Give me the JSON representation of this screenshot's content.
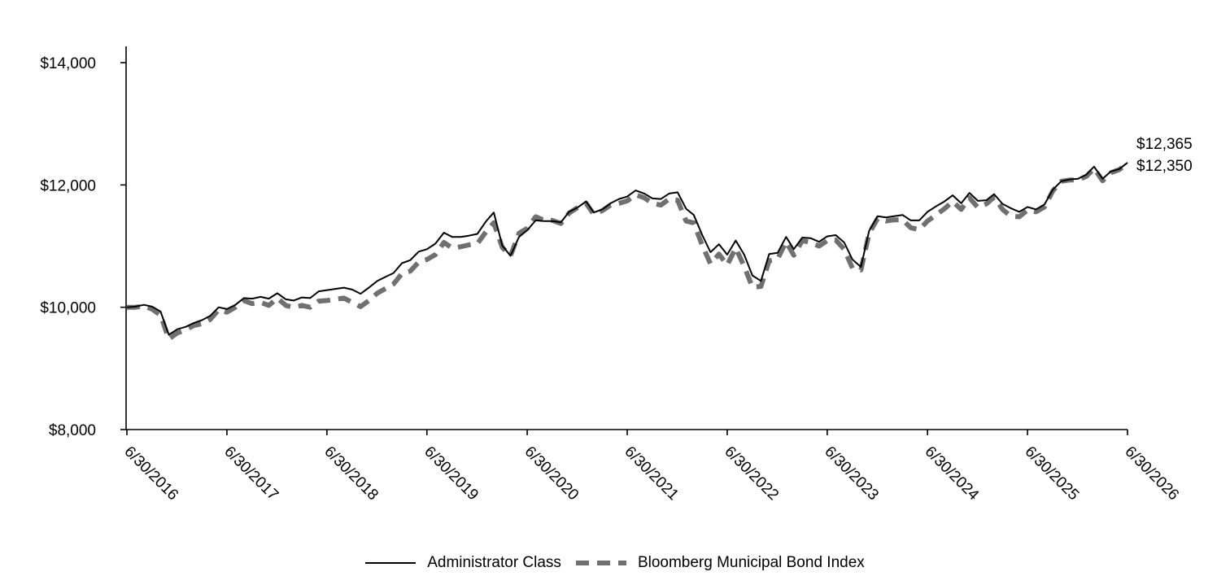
{
  "chart_data": {
    "type": "line",
    "title": "",
    "xlabel": "",
    "ylabel": "",
    "ylim": [
      8000,
      14000
    ],
    "y_ticks": [
      8000,
      10000,
      12000,
      14000
    ],
    "y_tick_labels": [
      "$8,000",
      "$10,000",
      "$12,000",
      "$14,000"
    ],
    "x_ticks": [
      "6/30/2016",
      "6/30/2017",
      "6/30/2018",
      "6/30/2019",
      "6/30/2020",
      "6/30/2021",
      "6/30/2022",
      "6/30/2023",
      "6/30/2024",
      "6/30/2025",
      "6/30/2026"
    ],
    "xlim": [
      "6/30/2016",
      "6/30/2026"
    ],
    "grid": false,
    "legend_placement": "bottom-center",
    "end_labels": [
      "$12,365",
      "$12,350"
    ],
    "series": [
      {
        "name": "Administrator Class",
        "color": "#000000",
        "style": "solid",
        "points": [
          [
            "6/30/2016",
            10000
          ],
          [
            "7/31/2016",
            10010
          ],
          [
            "8/31/2016",
            10040
          ],
          [
            "9/30/2016",
            10010
          ],
          [
            "10/31/2016",
            9930
          ],
          [
            "11/30/2016",
            9550
          ],
          [
            "12/31/2016",
            9640
          ],
          [
            "1/31/2017",
            9680
          ],
          [
            "2/28/2017",
            9740
          ],
          [
            "3/31/2017",
            9790
          ],
          [
            "4/30/2017",
            9860
          ],
          [
            "5/31/2017",
            10000
          ],
          [
            "6/30/2017",
            9970
          ],
          [
            "7/31/2017",
            10040
          ],
          [
            "8/31/2017",
            10150
          ],
          [
            "9/30/2017",
            10140
          ],
          [
            "10/31/2017",
            10170
          ],
          [
            "11/30/2017",
            10140
          ],
          [
            "12/31/2017",
            10230
          ],
          [
            "1/31/2018",
            10130
          ],
          [
            "2/28/2018",
            10110
          ],
          [
            "3/31/2018",
            10160
          ],
          [
            "4/30/2018",
            10150
          ],
          [
            "5/31/2018",
            10260
          ],
          [
            "6/30/2018",
            10280
          ],
          [
            "7/31/2018",
            10300
          ],
          [
            "8/31/2018",
            10320
          ],
          [
            "9/30/2018",
            10290
          ],
          [
            "10/31/2018",
            10220
          ],
          [
            "11/30/2018",
            10320
          ],
          [
            "12/31/2018",
            10430
          ],
          [
            "1/31/2019",
            10500
          ],
          [
            "2/28/2019",
            10560
          ],
          [
            "3/31/2019",
            10720
          ],
          [
            "4/30/2019",
            10770
          ],
          [
            "5/31/2019",
            10910
          ],
          [
            "6/30/2019",
            10950
          ],
          [
            "7/31/2019",
            11040
          ],
          [
            "8/31/2019",
            11220
          ],
          [
            "9/30/2019",
            11150
          ],
          [
            "10/31/2019",
            11150
          ],
          [
            "11/30/2019",
            11170
          ],
          [
            "12/31/2019",
            11200
          ],
          [
            "1/31/2020",
            11400
          ],
          [
            "2/29/2020",
            11550
          ],
          [
            "3/31/2020",
            11010
          ],
          [
            "4/30/2020",
            10840
          ],
          [
            "5/31/2020",
            11150
          ],
          [
            "6/30/2020",
            11260
          ],
          [
            "7/31/2020",
            11420
          ],
          [
            "8/31/2020",
            11410
          ],
          [
            "9/30/2020",
            11410
          ],
          [
            "10/31/2020",
            11390
          ],
          [
            "11/30/2020",
            11560
          ],
          [
            "12/31/2020",
            11630
          ],
          [
            "1/31/2021",
            11730
          ],
          [
            "2/28/2021",
            11550
          ],
          [
            "3/31/2021",
            11600
          ],
          [
            "4/30/2021",
            11700
          ],
          [
            "5/31/2021",
            11770
          ],
          [
            "6/30/2021",
            11810
          ],
          [
            "7/31/2021",
            11910
          ],
          [
            "8/31/2021",
            11860
          ],
          [
            "9/30/2021",
            11780
          ],
          [
            "10/31/2021",
            11770
          ],
          [
            "11/30/2021",
            11860
          ],
          [
            "12/31/2021",
            11880
          ],
          [
            "1/31/2022",
            11610
          ],
          [
            "2/28/2022",
            11510
          ],
          [
            "3/31/2022",
            11180
          ],
          [
            "4/30/2022",
            10900
          ],
          [
            "5/31/2022",
            11030
          ],
          [
            "6/30/2022",
            10860
          ],
          [
            "7/31/2022",
            11090
          ],
          [
            "8/31/2022",
            10860
          ],
          [
            "9/30/2022",
            10520
          ],
          [
            "10/31/2022",
            10430
          ],
          [
            "11/30/2022",
            10870
          ],
          [
            "12/31/2022",
            10890
          ],
          [
            "1/31/2023",
            11150
          ],
          [
            "2/28/2023",
            10950
          ],
          [
            "3/31/2023",
            11140
          ],
          [
            "4/30/2023",
            11130
          ],
          [
            "5/31/2023",
            11070
          ],
          [
            "6/30/2023",
            11160
          ],
          [
            "7/31/2023",
            11180
          ],
          [
            "8/31/2023",
            11060
          ],
          [
            "9/30/2023",
            10780
          ],
          [
            "10/31/2023",
            10660
          ],
          [
            "11/30/2023",
            11250
          ],
          [
            "12/31/2023",
            11490
          ],
          [
            "1/31/2024",
            11470
          ],
          [
            "2/29/2024",
            11490
          ],
          [
            "3/31/2024",
            11510
          ],
          [
            "4/30/2024",
            11420
          ],
          [
            "5/31/2024",
            11420
          ],
          [
            "6/30/2024",
            11560
          ],
          [
            "7/31/2024",
            11650
          ],
          [
            "8/31/2024",
            11730
          ],
          [
            "9/30/2024",
            11830
          ],
          [
            "10/31/2024",
            11700
          ],
          [
            "11/30/2024",
            11870
          ],
          [
            "12/31/2024",
            11740
          ],
          [
            "1/31/2025",
            11750
          ],
          [
            "2/28/2025",
            11850
          ],
          [
            "3/31/2025",
            11690
          ],
          [
            "4/30/2025",
            11620
          ],
          [
            "5/31/2025",
            11560
          ],
          [
            "6/30/2025",
            11640
          ],
          [
            "7/31/2025",
            11600
          ],
          [
            "8/31/2025",
            11680
          ],
          [
            "9/30/2025",
            11920
          ],
          [
            "10/31/2025",
            12060
          ],
          [
            "11/30/2025",
            12090
          ],
          [
            "12/31/2025",
            12100
          ],
          [
            "1/31/2026",
            12170
          ],
          [
            "2/28/2026",
            12300
          ],
          [
            "3/31/2026",
            12100
          ],
          [
            "4/30/2026",
            12220
          ],
          [
            "5/31/2026",
            12260
          ],
          [
            "6/30/2026",
            12365
          ]
        ]
      },
      {
        "name": "Bloomberg Municipal Bond Index",
        "color": "#707070",
        "style": "dashed",
        "points": [
          [
            "6/30/2016",
            10000
          ],
          [
            "7/31/2016",
            10000
          ],
          [
            "8/31/2016",
            10020
          ],
          [
            "9/30/2016",
            9970
          ],
          [
            "10/31/2016",
            9870
          ],
          [
            "11/30/2016",
            9480
          ],
          [
            "12/31/2016",
            9580
          ],
          [
            "1/31/2017",
            9630
          ],
          [
            "2/28/2017",
            9700
          ],
          [
            "3/31/2017",
            9730
          ],
          [
            "4/30/2017",
            9800
          ],
          [
            "5/31/2017",
            9960
          ],
          [
            "6/30/2017",
            9920
          ],
          [
            "7/31/2017",
            10000
          ],
          [
            "8/31/2017",
            10110
          ],
          [
            "9/30/2017",
            10060
          ],
          [
            "10/31/2017",
            10080
          ],
          [
            "11/30/2017",
            10030
          ],
          [
            "12/31/2017",
            10150
          ],
          [
            "1/31/2018",
            10030
          ],
          [
            "2/28/2018",
            10000
          ],
          [
            "3/31/2018",
            10030
          ],
          [
            "4/30/2018",
            10000
          ],
          [
            "5/31/2018",
            10100
          ],
          [
            "6/30/2018",
            10110
          ],
          [
            "7/31/2018",
            10130
          ],
          [
            "8/31/2018",
            10150
          ],
          [
            "9/30/2018",
            10080
          ],
          [
            "10/31/2018",
            10010
          ],
          [
            "11/30/2018",
            10110
          ],
          [
            "12/31/2018",
            10230
          ],
          [
            "1/31/2019",
            10310
          ],
          [
            "2/28/2019",
            10380
          ],
          [
            "3/31/2019",
            10550
          ],
          [
            "4/30/2019",
            10590
          ],
          [
            "5/31/2019",
            10740
          ],
          [
            "6/30/2019",
            10780
          ],
          [
            "7/31/2019",
            10860
          ],
          [
            "8/31/2019",
            11060
          ],
          [
            "9/30/2019",
            10970
          ],
          [
            "10/31/2019",
            10990
          ],
          [
            "11/30/2019",
            11020
          ],
          [
            "12/31/2019",
            11040
          ],
          [
            "1/31/2020",
            11230
          ],
          [
            "2/29/2020",
            11380
          ],
          [
            "3/31/2020",
            10980
          ],
          [
            "4/30/2020",
            10840
          ],
          [
            "5/31/2020",
            11210
          ],
          [
            "6/30/2020",
            11290
          ],
          [
            "7/31/2020",
            11480
          ],
          [
            "8/31/2020",
            11420
          ],
          [
            "9/30/2020",
            11420
          ],
          [
            "10/31/2020",
            11370
          ],
          [
            "11/30/2020",
            11540
          ],
          [
            "12/31/2020",
            11630
          ],
          [
            "1/31/2021",
            11700
          ],
          [
            "2/28/2021",
            11520
          ],
          [
            "3/31/2021",
            11580
          ],
          [
            "4/30/2021",
            11670
          ],
          [
            "5/31/2021",
            11700
          ],
          [
            "6/30/2021",
            11740
          ],
          [
            "7/31/2021",
            11840
          ],
          [
            "8/31/2021",
            11790
          ],
          [
            "9/30/2021",
            11700
          ],
          [
            "10/31/2021",
            11670
          ],
          [
            "11/30/2021",
            11770
          ],
          [
            "12/31/2021",
            11750
          ],
          [
            "1/31/2022",
            11410
          ],
          [
            "2/28/2022",
            11380
          ],
          [
            "3/31/2022",
            11010
          ],
          [
            "4/30/2022",
            10710
          ],
          [
            "5/31/2022",
            10870
          ],
          [
            "6/30/2022",
            10690
          ],
          [
            "7/31/2022",
            10970
          ],
          [
            "8/31/2022",
            10670
          ],
          [
            "9/30/2022",
            10330
          ],
          [
            "10/31/2022",
            10340
          ],
          [
            "11/30/2022",
            10760
          ],
          [
            "12/31/2022",
            10790
          ],
          [
            "1/31/2023",
            11070
          ],
          [
            "2/28/2023",
            10850
          ],
          [
            "3/31/2023",
            11090
          ],
          [
            "4/30/2023",
            11060
          ],
          [
            "5/31/2023",
            11000
          ],
          [
            "6/30/2023",
            11090
          ],
          [
            "7/31/2023",
            11100
          ],
          [
            "8/31/2023",
            10950
          ],
          [
            "9/30/2023",
            10640
          ],
          [
            "10/31/2023",
            10610
          ],
          [
            "11/30/2023",
            11210
          ],
          [
            "12/31/2023",
            11450
          ],
          [
            "1/31/2024",
            11410
          ],
          [
            "2/29/2024",
            11430
          ],
          [
            "3/31/2024",
            11430
          ],
          [
            "4/30/2024",
            11300
          ],
          [
            "5/31/2024",
            11270
          ],
          [
            "6/30/2024",
            11410
          ],
          [
            "7/31/2024",
            11510
          ],
          [
            "8/31/2024",
            11610
          ],
          [
            "9/30/2024",
            11730
          ],
          [
            "10/31/2024",
            11600
          ],
          [
            "11/30/2024",
            11790
          ],
          [
            "12/31/2024",
            11630
          ],
          [
            "1/31/2025",
            11690
          ],
          [
            "2/28/2025",
            11800
          ],
          [
            "3/31/2025",
            11600
          ],
          [
            "4/30/2025",
            11490
          ],
          [
            "5/31/2025",
            11480
          ],
          [
            "6/30/2025",
            11590
          ],
          [
            "7/31/2025",
            11560
          ],
          [
            "8/31/2025",
            11640
          ],
          [
            "9/30/2025",
            11900
          ],
          [
            "10/31/2025",
            12060
          ],
          [
            "11/30/2025",
            12080
          ],
          [
            "12/31/2025",
            12080
          ],
          [
            "1/31/2026",
            12140
          ],
          [
            "2/28/2026",
            12270
          ],
          [
            "3/31/2026",
            12070
          ],
          [
            "4/30/2026",
            12200
          ],
          [
            "5/31/2026",
            12250
          ],
          [
            "6/30/2026",
            12350
          ]
        ]
      }
    ]
  }
}
